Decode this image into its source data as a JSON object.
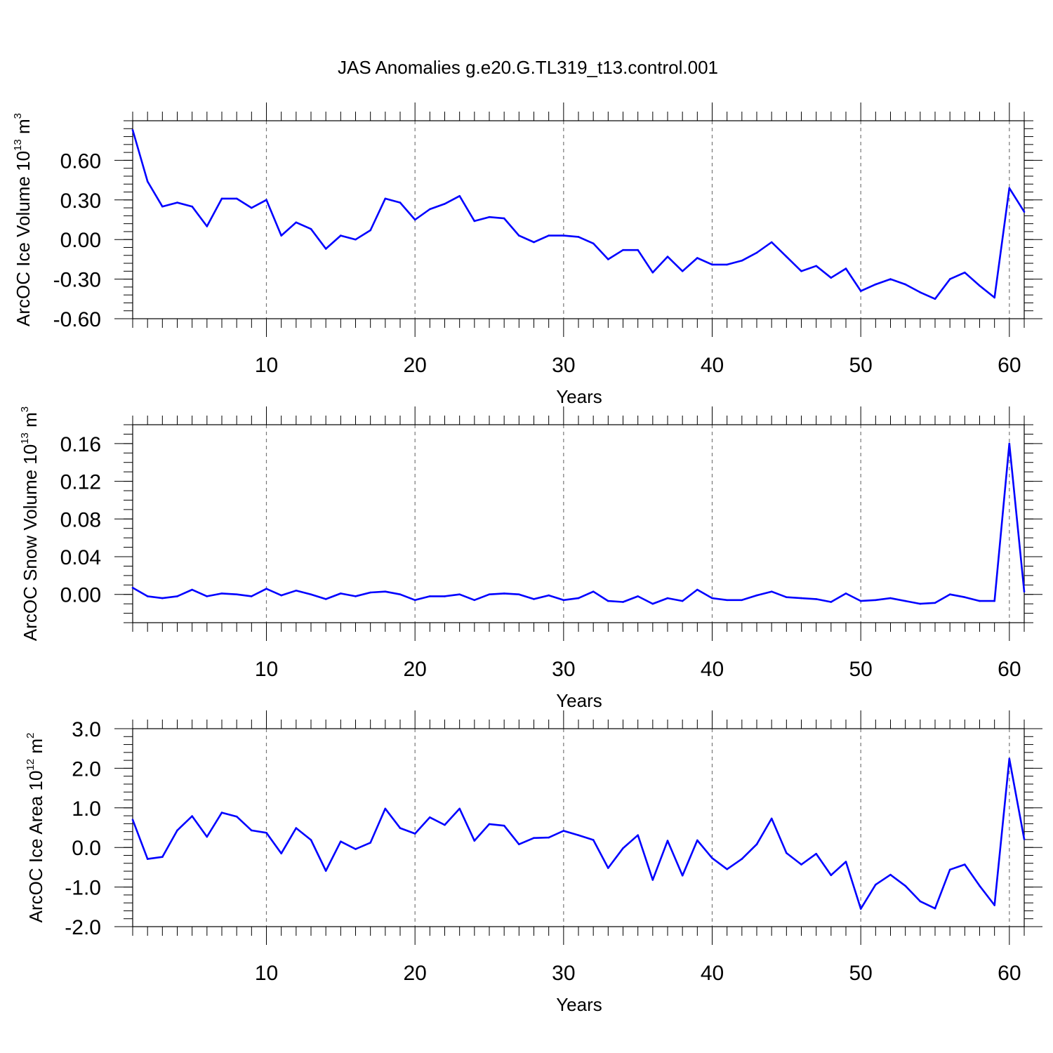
{
  "title": "JAS Anomalies g.e20.G.TL319_t13.control.001",
  "colors": {
    "series": "#0000ff",
    "axis": "#000000",
    "grid": "#777777"
  },
  "chart_data": [
    {
      "type": "line",
      "title": "JAS Anomalies g.e20.G.TL319_t13.control.001",
      "xlabel": "Years",
      "ylabel_parts": {
        "base": "ArcOC Ice Volume 10",
        "exp1": "13",
        "unit": " m",
        "exp2": "3"
      },
      "xlim": [
        1,
        61
      ],
      "ylim": [
        -0.6,
        0.9
      ],
      "xticks": [
        10,
        20,
        30,
        40,
        50,
        60
      ],
      "xtick_labels": [
        "10",
        "20",
        "30",
        "40",
        "50",
        "60"
      ],
      "yticks": [
        -0.6,
        -0.3,
        0.0,
        0.3,
        0.6
      ],
      "ytick_labels": [
        "-0.60",
        "-0.30",
        "0.00",
        "0.30",
        "0.60"
      ],
      "y_minor_step": 0.06,
      "vgrid": [
        10,
        20,
        30,
        40,
        50,
        60
      ],
      "x": [
        1,
        2,
        3,
        4,
        5,
        6,
        7,
        8,
        9,
        10,
        11,
        12,
        13,
        14,
        15,
        16,
        17,
        18,
        19,
        20,
        21,
        22,
        23,
        24,
        25,
        26,
        27,
        28,
        29,
        30,
        31,
        32,
        33,
        34,
        35,
        36,
        37,
        38,
        39,
        40,
        41,
        42,
        43,
        44,
        45,
        46,
        47,
        48,
        49,
        50,
        51,
        52,
        53,
        54,
        55,
        56,
        57,
        58,
        59,
        60,
        61
      ],
      "values": [
        0.83,
        0.44,
        0.25,
        0.28,
        0.25,
        0.1,
        0.31,
        0.31,
        0.24,
        0.3,
        0.03,
        0.13,
        0.08,
        -0.07,
        0.03,
        0.0,
        0.07,
        0.31,
        0.28,
        0.15,
        0.23,
        0.27,
        0.33,
        0.14,
        0.17,
        0.16,
        0.03,
        -0.02,
        0.03,
        0.03,
        0.02,
        -0.03,
        -0.15,
        -0.08,
        -0.08,
        -0.25,
        -0.13,
        -0.24,
        -0.14,
        -0.19,
        -0.19,
        -0.16,
        -0.1,
        -0.02,
        -0.13,
        -0.24,
        -0.2,
        -0.29,
        -0.22,
        -0.39,
        -0.34,
        -0.3,
        -0.34,
        -0.4,
        -0.45,
        -0.3,
        -0.25,
        -0.35,
        -0.44,
        0.39,
        0.21
      ]
    },
    {
      "type": "line",
      "xlabel": "Years",
      "ylabel_parts": {
        "base": "ArcOC Snow Volume 10",
        "exp1": "13",
        "unit": " m",
        "exp2": "3"
      },
      "xlim": [
        1,
        61
      ],
      "ylim": [
        -0.03,
        0.18
      ],
      "xticks": [
        10,
        20,
        30,
        40,
        50,
        60
      ],
      "xtick_labels": [
        "10",
        "20",
        "30",
        "40",
        "50",
        "60"
      ],
      "yticks": [
        0.0,
        0.04,
        0.08,
        0.12,
        0.16
      ],
      "ytick_labels": [
        "0.00",
        "0.04",
        "0.08",
        "0.12",
        "0.16"
      ],
      "y_minor_step": 0.01,
      "vgrid": [
        10,
        20,
        30,
        40,
        50,
        60
      ],
      "x": [
        1,
        2,
        3,
        4,
        5,
        6,
        7,
        8,
        9,
        10,
        11,
        12,
        13,
        14,
        15,
        16,
        17,
        18,
        19,
        20,
        21,
        22,
        23,
        24,
        25,
        26,
        27,
        28,
        29,
        30,
        31,
        32,
        33,
        34,
        35,
        36,
        37,
        38,
        39,
        40,
        41,
        42,
        43,
        44,
        45,
        46,
        47,
        48,
        49,
        50,
        51,
        52,
        53,
        54,
        55,
        56,
        57,
        58,
        59,
        60,
        61
      ],
      "values": [
        0.007,
        -0.002,
        -0.004,
        -0.002,
        0.005,
        -0.002,
        0.001,
        0.0,
        -0.002,
        0.006,
        -0.001,
        0.004,
        0.0,
        -0.005,
        0.001,
        -0.002,
        0.002,
        0.003,
        0.0,
        -0.006,
        -0.002,
        -0.002,
        0.0,
        -0.006,
        0.0,
        0.001,
        0.0,
        -0.005,
        -0.001,
        -0.006,
        -0.004,
        0.003,
        -0.007,
        -0.008,
        -0.002,
        -0.01,
        -0.004,
        -0.007,
        0.005,
        -0.004,
        -0.006,
        -0.006,
        -0.001,
        0.003,
        -0.003,
        -0.004,
        -0.005,
        -0.008,
        0.001,
        -0.007,
        -0.006,
        -0.004,
        -0.007,
        -0.01,
        -0.009,
        0.0,
        -0.003,
        -0.007,
        -0.007,
        0.16,
        0.003
      ]
    },
    {
      "type": "line",
      "xlabel": "Years",
      "ylabel_parts": {
        "base": "ArcOC Ice Area 10",
        "exp1": "12",
        "unit": " m",
        "exp2": "2"
      },
      "xlim": [
        1,
        61
      ],
      "ylim": [
        -2.0,
        3.0
      ],
      "xticks": [
        10,
        20,
        30,
        40,
        50,
        60
      ],
      "xtick_labels": [
        "10",
        "20",
        "30",
        "40",
        "50",
        "60"
      ],
      "yticks": [
        -2.0,
        -1.0,
        0.0,
        1.0,
        2.0,
        3.0
      ],
      "ytick_labels": [
        "-2.0",
        "-1.0",
        "0.0",
        "1.0",
        "2.0",
        "3.0"
      ],
      "y_minor_step": 0.2,
      "vgrid": [
        10,
        20,
        30,
        40,
        50,
        60
      ],
      "x": [
        1,
        2,
        3,
        4,
        5,
        6,
        7,
        8,
        9,
        10,
        11,
        12,
        13,
        14,
        15,
        16,
        17,
        18,
        19,
        20,
        21,
        22,
        23,
        24,
        25,
        26,
        27,
        28,
        29,
        30,
        31,
        32,
        33,
        34,
        35,
        36,
        37,
        38,
        39,
        40,
        41,
        42,
        43,
        44,
        45,
        46,
        47,
        48,
        49,
        50,
        51,
        52,
        53,
        54,
        55,
        56,
        57,
        58,
        59,
        60,
        61
      ],
      "values": [
        0.7,
        -0.29,
        -0.24,
        0.43,
        0.79,
        0.27,
        0.88,
        0.78,
        0.43,
        0.37,
        -0.15,
        0.49,
        0.19,
        -0.59,
        0.15,
        -0.04,
        0.12,
        0.98,
        0.49,
        0.35,
        0.76,
        0.57,
        0.98,
        0.17,
        0.59,
        0.55,
        0.08,
        0.24,
        0.25,
        0.42,
        0.31,
        0.19,
        -0.52,
        -0.02,
        0.31,
        -0.82,
        0.17,
        -0.71,
        0.18,
        -0.27,
        -0.55,
        -0.29,
        0.08,
        0.73,
        -0.14,
        -0.43,
        -0.16,
        -0.7,
        -0.36,
        -1.55,
        -0.94,
        -0.69,
        -0.97,
        -1.36,
        -1.54,
        -0.56,
        -0.43,
        -0.97,
        -1.46,
        2.24,
        0.21
      ]
    }
  ]
}
